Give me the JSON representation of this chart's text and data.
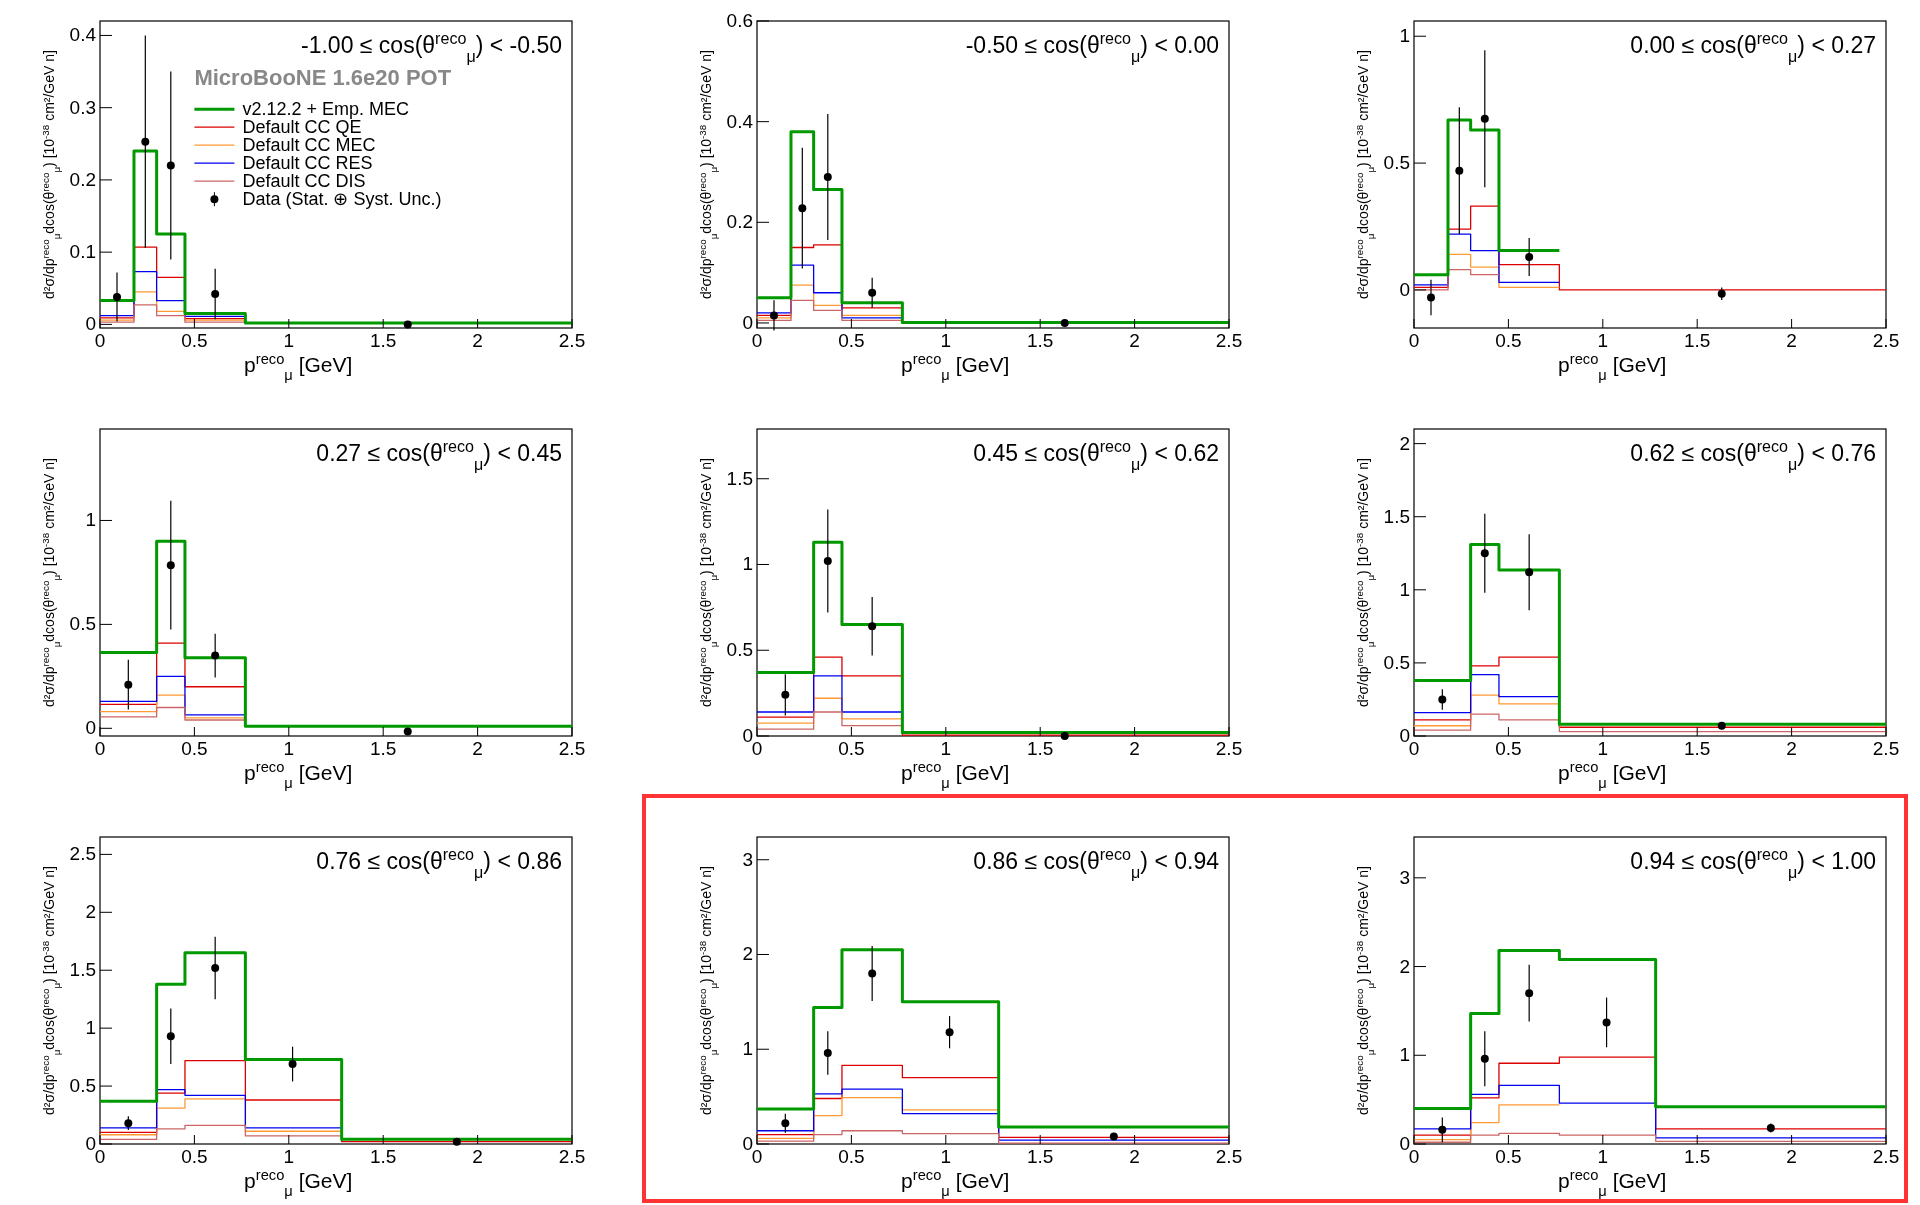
{
  "chart_data": [
    {
      "type": "line",
      "marker": "none",
      "title": "-1.00 ≤ cos(θ$^{reco}$$_{μ}$) < -0.50",
      "xlabel": "p$^{reco}$$_{μ}$ [GeV]",
      "ylabel": "d²σ/dp$^{reco}$$_{μ}$dcos(θ$^{reco}$$_{μ}$) [10$^{-38}$ cm²/GeV n]",
      "legend": "top",
      "legend_title": "MicroBooNE 1.6e20 POT",
      "x": [
        0,
        0.18,
        0.18,
        0.3,
        0.3,
        0.45,
        0.45,
        0.77,
        0.77,
        2.5
      ],
      "xlim": [
        0,
        2.5
      ],
      "xticks": [
        0,
        0.5,
        1,
        1.5,
        2,
        2.5
      ],
      "ylim": [
        -0.005,
        0.42
      ],
      "yticks": [
        0,
        0.1,
        0.2,
        0.3,
        0.4
      ],
      "series": [
        {
          "name": "v2.12.2 + Emp. MEC",
          "color": "#009900",
          "values": [
            0.033,
            0.033,
            0.24,
            0.24,
            0.125,
            0.125,
            0.015,
            0.015,
            0.002,
            0.002
          ]
        },
        {
          "name": "Default CC QE",
          "color": "#dd0000",
          "values": [
            0.009,
            0.009,
            0.107,
            0.107,
            0.065,
            0.065,
            0.008,
            0.008,
            null,
            null
          ]
        },
        {
          "name": "Default CC MEC",
          "color": "#ff9933",
          "values": [
            0.006,
            0.006,
            0.045,
            0.045,
            0.018,
            0.018,
            0.006,
            0.006,
            null,
            null
          ]
        },
        {
          "name": "Default CC RES",
          "color": "#0000ee",
          "values": [
            0.012,
            0.012,
            0.073,
            0.073,
            0.033,
            0.033,
            0.011,
            0.011,
            null,
            null
          ]
        },
        {
          "name": "Default CC DIS",
          "color": "#cc6666",
          "values": [
            0.003,
            0.003,
            0.027,
            0.027,
            0.012,
            0.012,
            0.003,
            0.003,
            null,
            null
          ]
        },
        {
          "name": "Data (Stat. ⊕ Syst. Unc.)",
          "type": "scatter",
          "marker": "circle",
          "color": "#000000",
          "x": [
            0.09,
            0.24,
            0.375,
            0.61,
            1.63
          ],
          "values": [
            0.038,
            0.253,
            0.22,
            0.042,
            0.0
          ],
          "errors": [
            0.034,
            0.147,
            0.13,
            0.035,
            0.002
          ]
        }
      ]
    },
    {
      "type": "line",
      "marker": "none",
      "title": "-0.50 ≤ cos(θ$^{reco}$$_{μ}$) < 0.00",
      "xlabel": "p$^{reco}$$_{μ}$ [GeV]",
      "ylabel": "d²σ/dp$^{reco}$$_{μ}$dcos(θ$^{reco}$$_{μ}$) [10$^{-38}$ cm²/GeV n]",
      "x": [
        0,
        0.18,
        0.18,
        0.3,
        0.3,
        0.45,
        0.45,
        0.77,
        0.77,
        2.5
      ],
      "xlim": [
        0,
        2.5
      ],
      "xticks": [
        0,
        0.5,
        1,
        1.5,
        2,
        2.5
      ],
      "ylim": [
        -0.01,
        0.6
      ],
      "yticks": [
        0,
        0.2,
        0.4,
        0.6
      ],
      "series": [
        {
          "color": "#009900",
          "values": [
            0.05,
            0.05,
            0.38,
            0.38,
            0.265,
            0.265,
            0.04,
            0.04,
            0.001,
            0.001
          ]
        },
        {
          "color": "#dd0000",
          "values": [
            0.015,
            0.015,
            0.15,
            0.15,
            0.155,
            0.155,
            0.03,
            0.03,
            null,
            null
          ]
        },
        {
          "color": "#ff9933",
          "values": [
            0.01,
            0.01,
            0.075,
            0.075,
            0.035,
            0.035,
            0.015,
            0.015,
            null,
            null
          ]
        },
        {
          "color": "#0000ee",
          "values": [
            0.02,
            0.02,
            0.115,
            0.115,
            0.06,
            0.06,
            0.01,
            0.01,
            null,
            null
          ]
        },
        {
          "color": "#cc6666",
          "values": [
            0.005,
            0.005,
            0.045,
            0.045,
            0.025,
            0.025,
            0.005,
            0.005,
            null,
            null
          ]
        },
        {
          "type": "scatter",
          "marker": "circle",
          "color": "#000000",
          "x": [
            0.09,
            0.24,
            0.375,
            0.61,
            1.63
          ],
          "values": [
            0.015,
            0.228,
            0.29,
            0.06,
            0.0
          ],
          "errors": [
            0.03,
            0.12,
            0.125,
            0.03,
            0.003
          ]
        }
      ]
    },
    {
      "type": "line",
      "marker": "none",
      "title": "0.00 ≤ cos(θ$^{reco}$$_{μ}$) < 0.27",
      "xlabel": "p$^{reco}$$_{μ}$ [GeV]",
      "ylabel": "d²σ/dp$^{reco}$$_{μ}$dcos(θ$^{reco}$$_{μ}$) [10$^{-38}$ cm²/GeV n]",
      "x": [
        0,
        0.18,
        0.18,
        0.3,
        0.3,
        0.45,
        0.45,
        0.77,
        0.77,
        2.5
      ],
      "xlim": [
        0,
        2.5
      ],
      "xticks": [
        0,
        0.5,
        1,
        1.5,
        2,
        2.5
      ],
      "ylim": [
        -0.15,
        1.06
      ],
      "yticks": [
        0,
        0.5,
        1
      ],
      "series": [
        {
          "color": "#009900",
          "values": [
            0.06,
            0.06,
            0.67,
            0.67,
            0.63,
            0.63,
            0.155,
            0.155,
            null,
            null
          ]
        },
        {
          "color": "#dd0000",
          "values": [
            0.01,
            0.01,
            0.24,
            0.24,
            0.33,
            0.33,
            0.1,
            0.1,
            0.0,
            0.0
          ]
        },
        {
          "color": "#ff9933",
          "values": [
            null,
            null,
            0.14,
            0.14,
            0.09,
            0.09,
            0.01,
            0.01,
            null,
            null
          ]
        },
        {
          "color": "#0000ee",
          "values": [
            0.02,
            0.02,
            0.22,
            0.22,
            0.155,
            0.155,
            0.03,
            0.03,
            null,
            null
          ]
        },
        {
          "color": "#cc6666",
          "values": [
            0.0,
            0.0,
            0.08,
            0.08,
            0.06,
            0.06,
            null,
            null,
            null,
            null
          ]
        },
        {
          "type": "scatter",
          "marker": "circle",
          "color": "#000000",
          "x": [
            0.09,
            0.24,
            0.375,
            0.61,
            1.63
          ],
          "values": [
            -0.03,
            0.47,
            0.675,
            0.13,
            -0.015
          ],
          "errors": [
            0.07,
            0.25,
            0.27,
            0.075,
            0.025
          ]
        }
      ]
    },
    {
      "type": "line",
      "marker": "none",
      "title": "0.27 ≤ cos(θ$^{reco}$$_{μ}$) < 0.45",
      "xlabel": "p$^{reco}$$_{μ}$ [GeV]",
      "ylabel": "d²σ/dp$^{reco}$$_{μ}$dcos(θ$^{reco}$$_{μ}$) [10$^{-38}$ cm²/GeV n]",
      "x": [
        0,
        0.3,
        0.3,
        0.45,
        0.45,
        0.77,
        0.77,
        2.5
      ],
      "xlim": [
        0,
        2.5
      ],
      "xticks": [
        0,
        0.5,
        1,
        1.5,
        2,
        2.5
      ],
      "ylim": [
        -0.037,
        1.44
      ],
      "yticks": [
        0,
        0.5,
        1
      ],
      "series": [
        {
          "color": "#009900",
          "values": [
            0.365,
            0.365,
            0.9,
            0.9,
            0.34,
            0.34,
            0.01,
            0.01
          ]
        },
        {
          "color": "#dd0000",
          "values": [
            0.115,
            0.115,
            0.41,
            0.41,
            0.2,
            0.2,
            null,
            null
          ]
        },
        {
          "color": "#ff9933",
          "values": [
            0.08,
            0.08,
            0.16,
            0.16,
            0.05,
            0.05,
            null,
            null
          ]
        },
        {
          "color": "#0000ee",
          "values": [
            0.13,
            0.13,
            0.25,
            0.25,
            0.065,
            0.065,
            null,
            null
          ]
        },
        {
          "color": "#cc6666",
          "values": [
            0.055,
            0.055,
            0.1,
            0.1,
            0.04,
            0.04,
            null,
            null
          ]
        },
        {
          "type": "scatter",
          "marker": "circle",
          "color": "#000000",
          "x": [
            0.15,
            0.375,
            0.61,
            1.63
          ],
          "values": [
            0.21,
            0.785,
            0.35,
            -0.015
          ],
          "errors": [
            0.12,
            0.31,
            0.105,
            0.015
          ]
        }
      ]
    },
    {
      "type": "line",
      "marker": "none",
      "title": "0.45 ≤ cos(θ$^{reco}$$_{μ}$) < 0.62",
      "xlabel": "p$^{reco}$$_{μ}$ [GeV]",
      "ylabel": "d²σ/dp$^{reco}$$_{μ}$dcos(θ$^{reco}$$_{μ}$) [10$^{-38}$ cm²/GeV n]",
      "x": [
        0,
        0.3,
        0.3,
        0.45,
        0.45,
        0.77,
        0.77,
        2.5
      ],
      "xlim": [
        0,
        2.5
      ],
      "xticks": [
        0,
        0.5,
        1,
        1.5,
        2,
        2.5
      ],
      "ylim": [
        0,
        1.79
      ],
      "yticks": [
        0,
        0.5,
        1,
        1.5
      ],
      "series": [
        {
          "color": "#009900",
          "values": [
            0.37,
            0.37,
            1.13,
            1.13,
            0.65,
            0.65,
            0.02,
            0.02
          ]
        },
        {
          "color": "#dd0000",
          "values": [
            0.11,
            0.11,
            0.46,
            0.46,
            0.35,
            0.35,
            0.005,
            0.005
          ]
        },
        {
          "color": "#ff9933",
          "values": [
            0.075,
            0.075,
            0.22,
            0.22,
            0.1,
            0.1,
            null,
            null
          ]
        },
        {
          "color": "#0000ee",
          "values": [
            0.14,
            0.14,
            0.35,
            0.35,
            0.14,
            0.14,
            null,
            null
          ]
        },
        {
          "color": "#cc6666",
          "values": [
            0.04,
            0.04,
            0.14,
            0.14,
            0.06,
            0.06,
            null,
            null
          ]
        },
        {
          "type": "scatter",
          "marker": "circle",
          "color": "#000000",
          "x": [
            0.15,
            0.375,
            0.61,
            1.63
          ],
          "values": [
            0.24,
            1.02,
            0.64,
            0.0
          ],
          "errors": [
            0.12,
            0.3,
            0.17,
            0.01
          ]
        }
      ]
    },
    {
      "type": "line",
      "marker": "none",
      "title": "0.62 ≤ cos(θ$^{reco}$$_{μ}$) < 0.76",
      "xlabel": "p$^{reco}$$_{μ}$ [GeV]",
      "ylabel": "d²σ/dp$^{reco}$$_{μ}$dcos(θ$^{reco}$$_{μ}$) [10$^{-38}$ cm²/GeV n]",
      "x": [
        0,
        0.3,
        0.3,
        0.45,
        0.45,
        0.77,
        0.77,
        2.5
      ],
      "xlim": [
        0,
        2.5
      ],
      "xticks": [
        0,
        0.5,
        1,
        1.5,
        2,
        2.5
      ],
      "ylim": [
        0,
        2.1
      ],
      "yticks": [
        0,
        0.5,
        1,
        1.5,
        2
      ],
      "series": [
        {
          "color": "#009900",
          "values": [
            0.38,
            0.38,
            1.31,
            1.31,
            1.135,
            1.135,
            0.08,
            0.08
          ]
        },
        {
          "color": "#dd0000",
          "values": [
            0.11,
            0.11,
            0.48,
            0.48,
            0.54,
            0.54,
            0.06,
            0.06
          ]
        },
        {
          "color": "#ff9933",
          "values": [
            0.07,
            0.07,
            0.28,
            0.28,
            0.22,
            0.22,
            null,
            null
          ]
        },
        {
          "color": "#0000ee",
          "values": [
            0.16,
            0.16,
            0.42,
            0.42,
            0.27,
            0.27,
            null,
            null
          ]
        },
        {
          "color": "#cc6666",
          "values": [
            0.04,
            0.04,
            0.15,
            0.15,
            0.11,
            0.11,
            0.03,
            0.03
          ]
        },
        {
          "type": "scatter",
          "marker": "circle",
          "color": "#000000",
          "x": [
            0.15,
            0.375,
            0.61,
            1.63
          ],
          "values": [
            0.25,
            1.25,
            1.12,
            0.07
          ],
          "errors": [
            0.07,
            0.27,
            0.26,
            0.02
          ]
        }
      ]
    },
    {
      "type": "line",
      "marker": "none",
      "title": "0.76 ≤ cos(θ$^{reco}$$_{μ}$) < 0.86",
      "xlabel": "p$^{reco}$$_{μ}$ [GeV]",
      "ylabel": "d²σ/dp$^{reco}$$_{μ}$dcos(θ$^{reco}$$_{μ}$) [10$^{-38}$ cm²/GeV n]",
      "x": [
        0,
        0.3,
        0.3,
        0.45,
        0.45,
        0.77,
        0.77,
        1.28,
        1.28,
        2.5
      ],
      "xlim": [
        0,
        2.5
      ],
      "xticks": [
        0,
        0.5,
        1,
        1.5,
        2,
        2.5
      ],
      "ylim": [
        0,
        2.65
      ],
      "yticks": [
        0,
        0.5,
        1,
        1.5,
        2,
        2.5
      ],
      "series": [
        {
          "color": "#009900",
          "values": [
            0.37,
            0.37,
            1.38,
            1.38,
            1.65,
            1.65,
            0.73,
            0.73,
            0.04,
            0.04
          ]
        },
        {
          "color": "#dd0000",
          "values": [
            0.1,
            0.1,
            0.44,
            0.44,
            0.72,
            0.72,
            0.38,
            0.38,
            0.02,
            0.02
          ]
        },
        {
          "color": "#ff9933",
          "values": [
            0.08,
            0.08,
            0.31,
            0.31,
            0.39,
            0.39,
            0.11,
            0.11,
            null,
            null
          ]
        },
        {
          "color": "#0000ee",
          "values": [
            0.14,
            0.14,
            0.47,
            0.47,
            0.42,
            0.42,
            0.14,
            0.14,
            null,
            null
          ]
        },
        {
          "color": "#cc6666",
          "values": [
            0.04,
            0.04,
            0.13,
            0.13,
            0.16,
            0.16,
            0.07,
            0.07,
            null,
            null
          ]
        },
        {
          "type": "scatter",
          "marker": "circle",
          "color": "#000000",
          "x": [
            0.15,
            0.375,
            0.61,
            1.02,
            1.89
          ],
          "values": [
            0.18,
            0.93,
            1.52,
            0.69,
            0.02
          ],
          "errors": [
            0.06,
            0.24,
            0.27,
            0.15,
            0.02
          ]
        }
      ]
    },
    {
      "type": "line",
      "marker": "none",
      "title": "0.86 ≤ cos(θ$^{reco}$$_{μ}$) < 0.94",
      "xlabel": "p$^{reco}$$_{μ}$ [GeV]",
      "ylabel": "d²σ/dp$^{reco}$$_{μ}$dcos(θ$^{reco}$$_{μ}$) [10$^{-38}$ cm²/GeV n]",
      "x": [
        0,
        0.3,
        0.3,
        0.45,
        0.45,
        0.77,
        0.77,
        1.28,
        1.28,
        2.5
      ],
      "xlim": [
        0,
        2.5
      ],
      "xticks": [
        0,
        0.5,
        1,
        1.5,
        2,
        2.5
      ],
      "ylim": [
        0,
        3.24
      ],
      "yticks": [
        0,
        1,
        2,
        3
      ],
      "series": [
        {
          "color": "#009900",
          "values": [
            0.37,
            0.37,
            1.44,
            1.44,
            2.05,
            2.05,
            1.5,
            1.5,
            0.18,
            0.18
          ]
        },
        {
          "color": "#dd0000",
          "values": [
            0.1,
            0.1,
            0.48,
            0.48,
            0.83,
            0.83,
            0.7,
            0.7,
            0.07,
            0.07
          ]
        },
        {
          "color": "#ff9933",
          "values": [
            0.06,
            0.06,
            0.3,
            0.3,
            0.49,
            0.49,
            0.36,
            0.36,
            null,
            null
          ]
        },
        {
          "color": "#0000ee",
          "values": [
            0.14,
            0.14,
            0.53,
            0.53,
            0.58,
            0.58,
            0.32,
            0.32,
            0.04,
            0.04
          ]
        },
        {
          "color": "#cc6666",
          "values": [
            0.03,
            0.03,
            0.1,
            0.1,
            0.14,
            0.14,
            0.11,
            0.11,
            0.01,
            0.01
          ]
        },
        {
          "type": "scatter",
          "marker": "circle",
          "color": "#000000",
          "x": [
            0.15,
            0.375,
            0.61,
            1.02,
            1.89
          ],
          "values": [
            0.22,
            0.96,
            1.8,
            1.18,
            0.08
          ],
          "errors": [
            0.1,
            0.23,
            0.29,
            0.17,
            0.01
          ]
        }
      ]
    },
    {
      "type": "line",
      "marker": "none",
      "title": "0.94 ≤ cos(θ$^{reco}$$_{μ}$) < 1.00",
      "xlabel": "p$^{reco}$$_{μ}$ [GeV]",
      "ylabel": "d²σ/dp$^{reco}$$_{μ}$dcos(θ$^{reco}$$_{μ}$) [10$^{-38}$ cm²/GeV n]",
      "x": [
        0,
        0.3,
        0.3,
        0.45,
        0.45,
        0.77,
        0.77,
        1.28,
        1.28,
        2.5
      ],
      "xlim": [
        0,
        2.5
      ],
      "xticks": [
        0,
        0.5,
        1,
        1.5,
        2,
        2.5
      ],
      "ylim": [
        0,
        3.46
      ],
      "yticks": [
        0,
        1,
        2,
        3
      ],
      "series": [
        {
          "color": "#009900",
          "values": [
            0.4,
            0.4,
            1.47,
            1.47,
            2.18,
            2.18,
            2.08,
            2.08,
            0.42,
            0.42
          ]
        },
        {
          "color": "#dd0000",
          "values": [
            0.1,
            0.1,
            0.52,
            0.52,
            0.91,
            0.91,
            0.98,
            0.98,
            0.17,
            0.17
          ]
        },
        {
          "color": "#ff9933",
          "values": [
            0.05,
            0.05,
            0.24,
            0.24,
            0.44,
            0.44,
            null,
            null,
            null,
            null
          ]
        },
        {
          "color": "#0000ee",
          "values": [
            0.17,
            0.17,
            0.56,
            0.56,
            0.66,
            0.66,
            0.46,
            0.46,
            0.07,
            0.07
          ]
        },
        {
          "color": "#cc6666",
          "values": [
            0.02,
            0.02,
            0.1,
            0.1,
            0.12,
            0.12,
            0.1,
            0.1,
            0.03,
            0.03
          ]
        },
        {
          "type": "scatter",
          "marker": "circle",
          "color": "#000000",
          "x": [
            0.15,
            0.375,
            0.61,
            1.02,
            1.89
          ],
          "values": [
            0.16,
            0.96,
            1.7,
            1.37,
            0.18
          ],
          "errors": [
            0.14,
            0.31,
            0.32,
            0.28,
            0.05
          ]
        }
      ]
    }
  ]
}
